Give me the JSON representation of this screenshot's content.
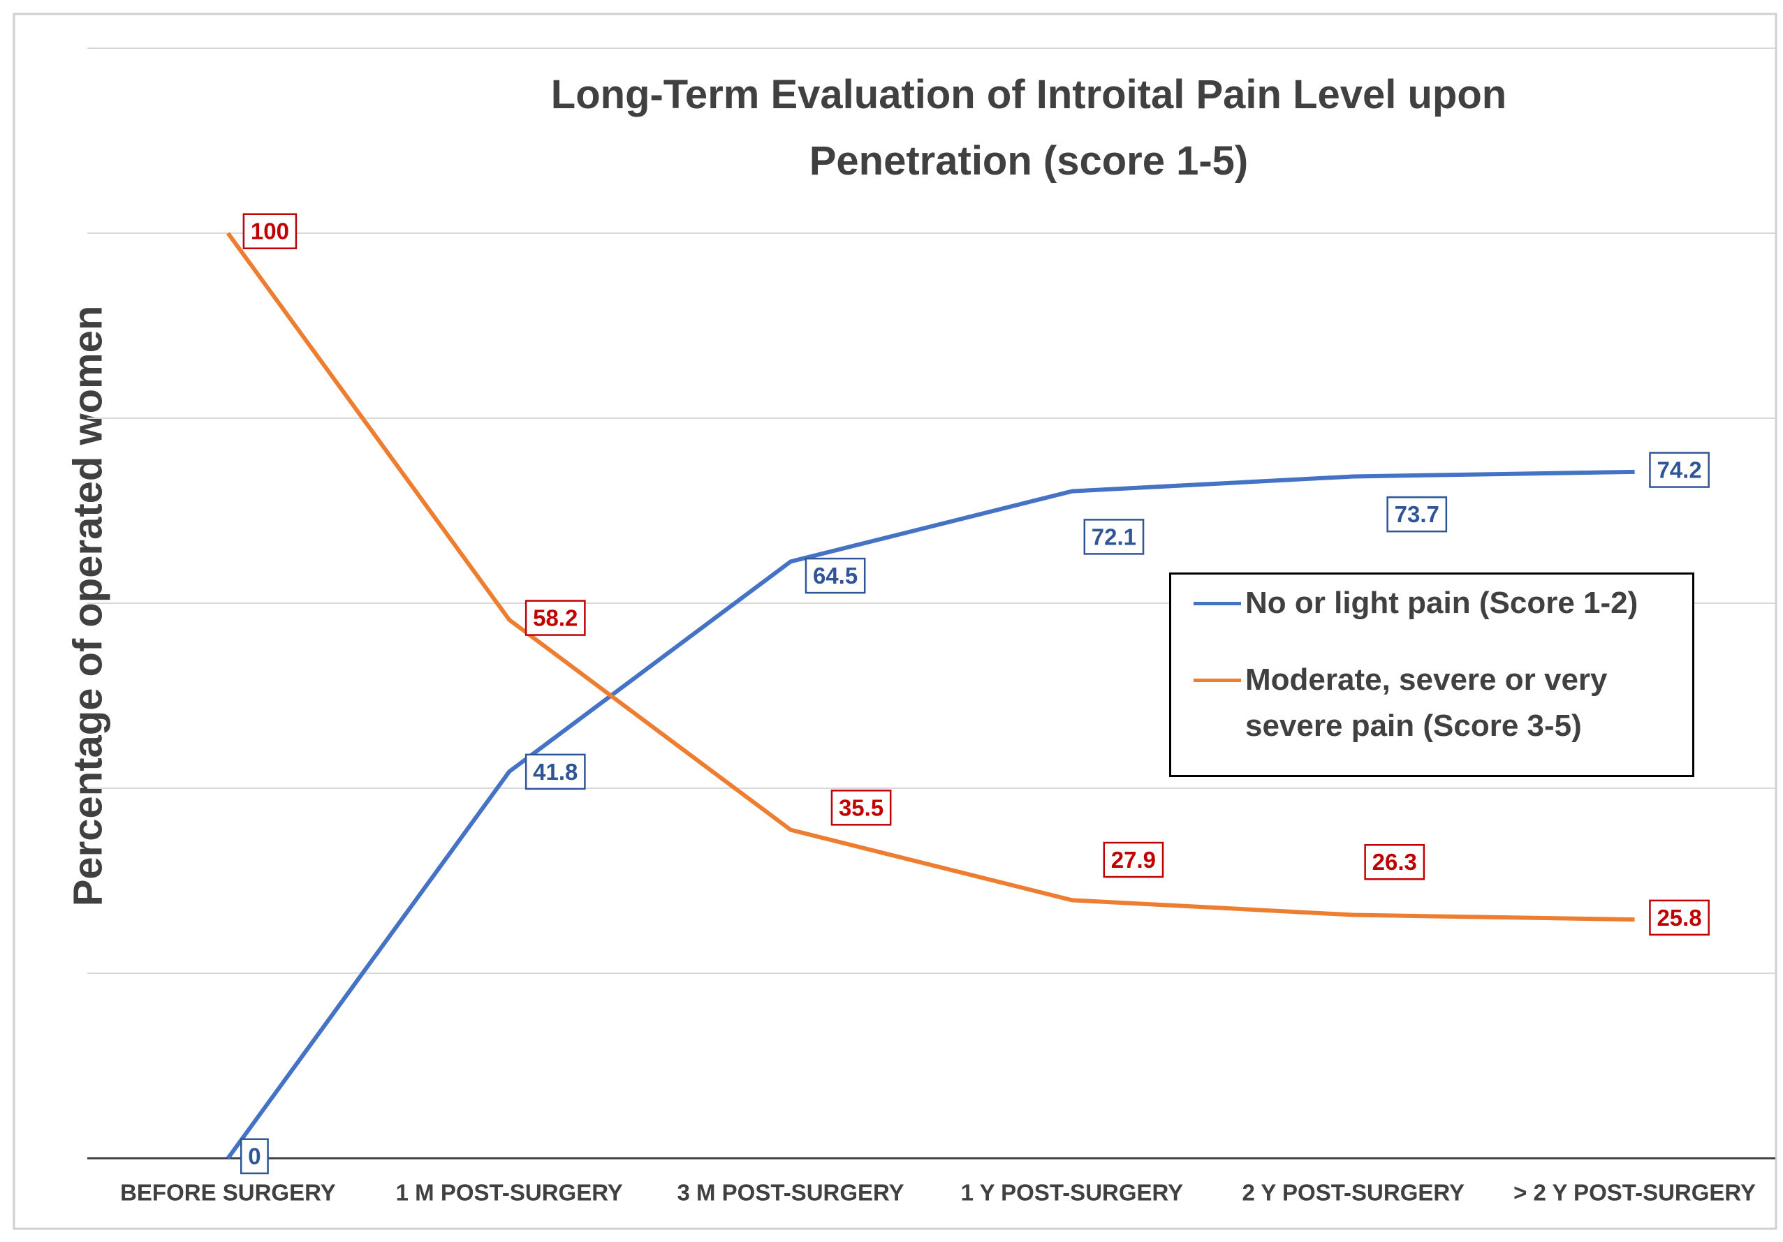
{
  "chart_data": {
    "type": "line",
    "title": "Long-Term Evaluation of Introital Pain Level upon Penetration (score 1-5)",
    "y_label": "Percentage of operated women",
    "categories": [
      "BEFORE SURGERY",
      "1 M POST-SURGERY",
      "3 M POST-SURGERY",
      "1 Y POST-SURGERY",
      "2 Y POST-SURGERY",
      "> 2 Y POST-SURGERY"
    ],
    "series": [
      {
        "name": "No or light pain (Score 1-2)",
        "color": "#4472c4",
        "label_color": "#2f5597",
        "values": [
          0,
          41.8,
          64.5,
          72.1,
          73.7,
          74.2
        ]
      },
      {
        "name": "Moderate, severe or very severe  pain (Score 3-5)",
        "color": "#ed7d31",
        "label_color": "#c00000",
        "values": [
          100,
          58.2,
          35.5,
          27.9,
          26.3,
          25.8
        ]
      }
    ],
    "ylim": [
      0,
      120
    ],
    "gridlines": [
      0,
      20,
      40,
      60,
      80,
      100,
      120
    ],
    "grid": true
  }
}
